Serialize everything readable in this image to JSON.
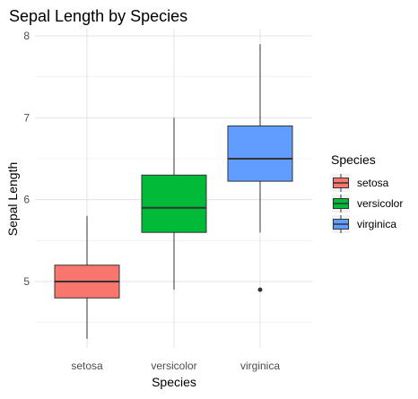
{
  "chart_data": {
    "type": "boxplot",
    "title": "Sepal Length by Species",
    "xlabel": "Species",
    "ylabel": "Sepal Length",
    "categories": [
      "setosa",
      "versicolor",
      "virginica"
    ],
    "yticks": [
      5,
      6,
      7,
      8
    ],
    "ylim": [
      4.25,
      8.0
    ],
    "grid": true,
    "legend": {
      "title": "Species",
      "placement": "right",
      "entries": [
        "setosa",
        "versicolor",
        "virginica"
      ]
    },
    "series": [
      {
        "category": "setosa",
        "color": "#F8766D",
        "whisker_low": 4.3,
        "q1": 4.8,
        "median": 5.0,
        "q3": 5.2,
        "whisker_high": 5.8,
        "outliers": []
      },
      {
        "category": "versicolor",
        "color": "#00BA38",
        "whisker_low": 4.9,
        "q1": 5.6,
        "median": 5.9,
        "q3": 6.3,
        "whisker_high": 7.0,
        "outliers": []
      },
      {
        "category": "virginica",
        "color": "#619CFF",
        "whisker_low": 5.6,
        "q1": 6.225,
        "median": 6.5,
        "q3": 6.9,
        "whisker_high": 7.9,
        "outliers": [
          4.9
        ]
      }
    ]
  }
}
